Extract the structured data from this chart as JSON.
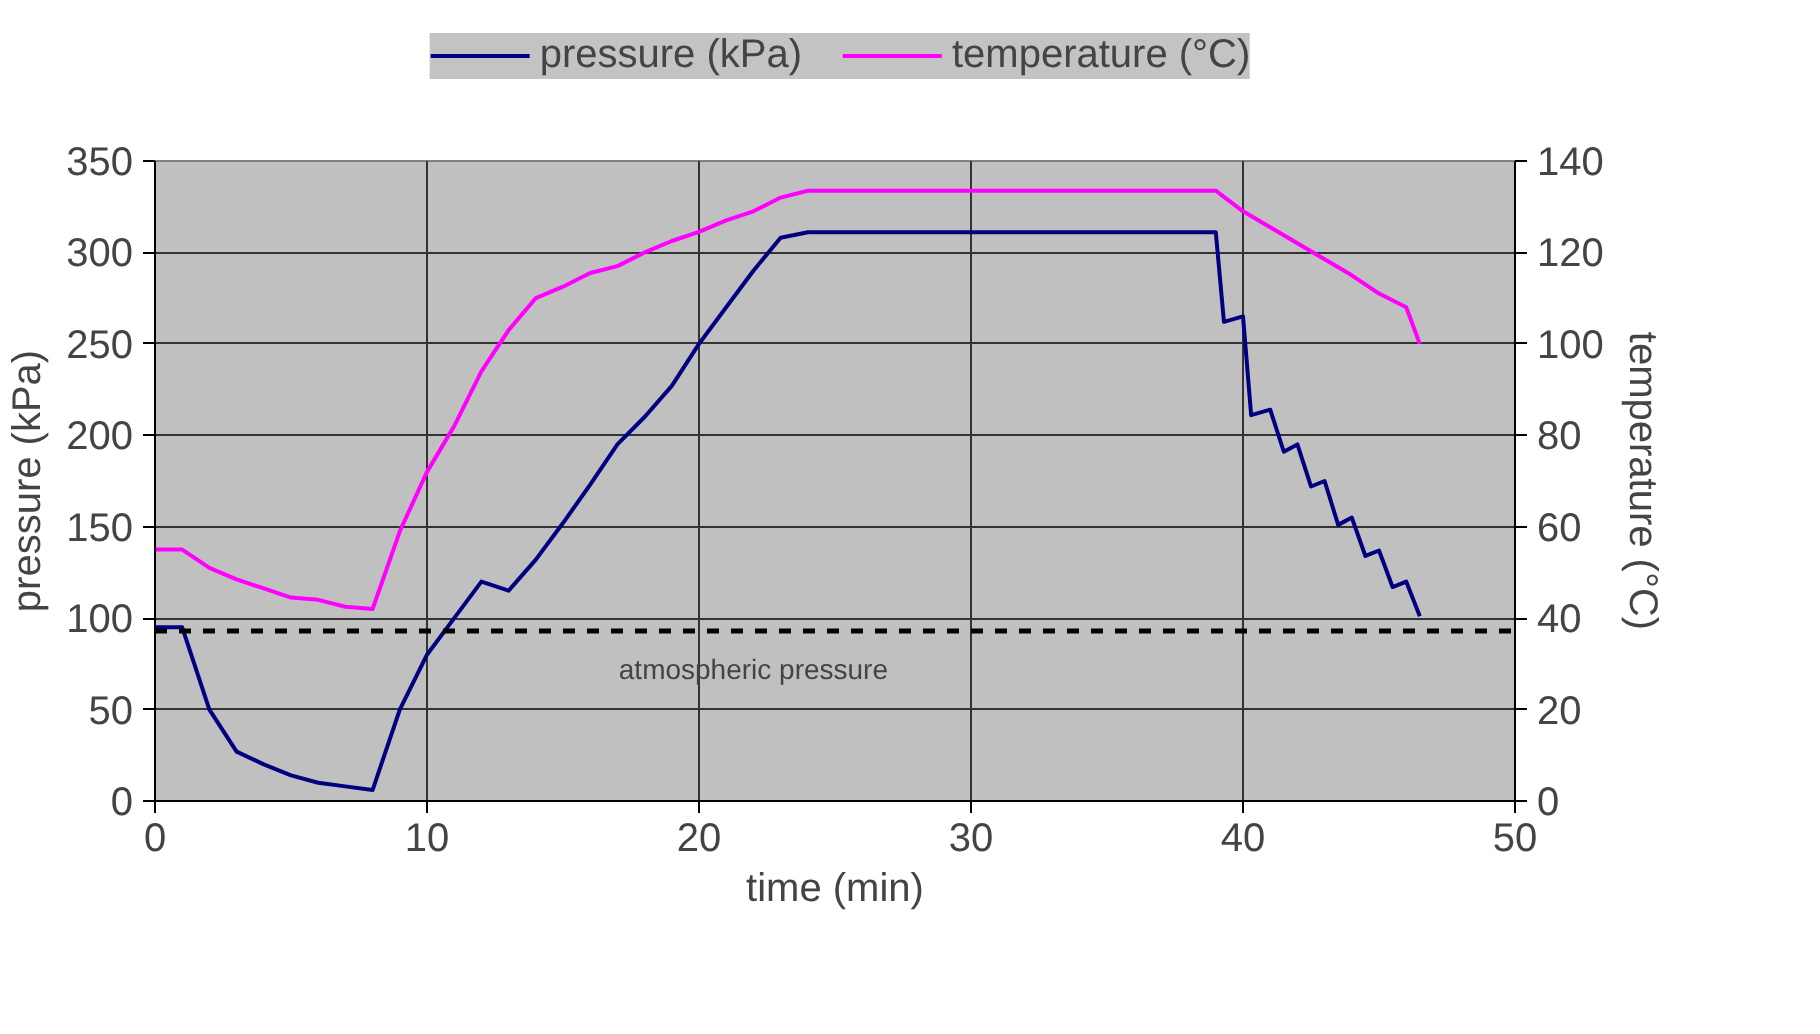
{
  "chart_data": {
    "type": "line",
    "xlabel": "time (min)",
    "ylabel": "pressure (kPa)",
    "y2label": "temperature (°C)",
    "xlim": [
      0,
      50
    ],
    "xticks": [
      0,
      10,
      20,
      30,
      40,
      50
    ],
    "ylim": [
      0,
      350
    ],
    "yticks": [
      0,
      50,
      100,
      150,
      200,
      250,
      300,
      350
    ],
    "y2lim": [
      0,
      140
    ],
    "y2ticks": [
      0,
      20,
      40,
      60,
      80,
      100,
      120,
      140
    ],
    "grid": true,
    "legend": "top",
    "ref_lines": [
      {
        "axis": "y",
        "value": 93,
        "label": "atmospheric pressure",
        "color": "#000000",
        "line_style": "dashed"
      }
    ],
    "series": [
      {
        "name": "pressure (kPa)",
        "color": "#000080",
        "x": [
          0,
          1,
          2,
          3,
          4,
          5,
          6,
          7,
          8,
          9,
          10,
          11,
          12,
          13,
          14,
          15,
          16,
          17,
          18,
          19,
          20,
          21,
          22,
          23,
          24,
          39,
          39.3,
          40,
          40.3,
          41,
          41.5,
          42,
          42.5,
          43,
          43.5,
          44,
          44.5,
          45,
          45.5,
          46,
          46.5
        ],
        "values": [
          95,
          95,
          50,
          27,
          20,
          14,
          10,
          8,
          6,
          50,
          80,
          100,
          120,
          115,
          132,
          152,
          173,
          195,
          210,
          227,
          250,
          270,
          290,
          308,
          311,
          311,
          262,
          265,
          211,
          214,
          191,
          195,
          172,
          175,
          151,
          155,
          134,
          137,
          117,
          120,
          101
        ]
      },
      {
        "name": "temperature (°C)",
        "color": "#ff00ff",
        "axis": "y2",
        "x": [
          0,
          1,
          2,
          3,
          4,
          5,
          6,
          7,
          8,
          9,
          10,
          11,
          12,
          13,
          14,
          15,
          16,
          17,
          18,
          19,
          20,
          21,
          22,
          23,
          24,
          39,
          40,
          41,
          42,
          43,
          44,
          45,
          46,
          46.5
        ],
        "values": [
          55,
          55,
          51,
          48.5,
          46.5,
          44.5,
          44,
          42.5,
          42,
          59,
          72,
          82,
          94,
          103,
          110,
          112.5,
          115.5,
          117,
          120,
          122.5,
          124.5,
          127,
          129,
          132,
          133.5,
          133.5,
          129,
          125.5,
          122,
          118.5,
          115,
          111,
          108,
          100
        ]
      }
    ]
  }
}
